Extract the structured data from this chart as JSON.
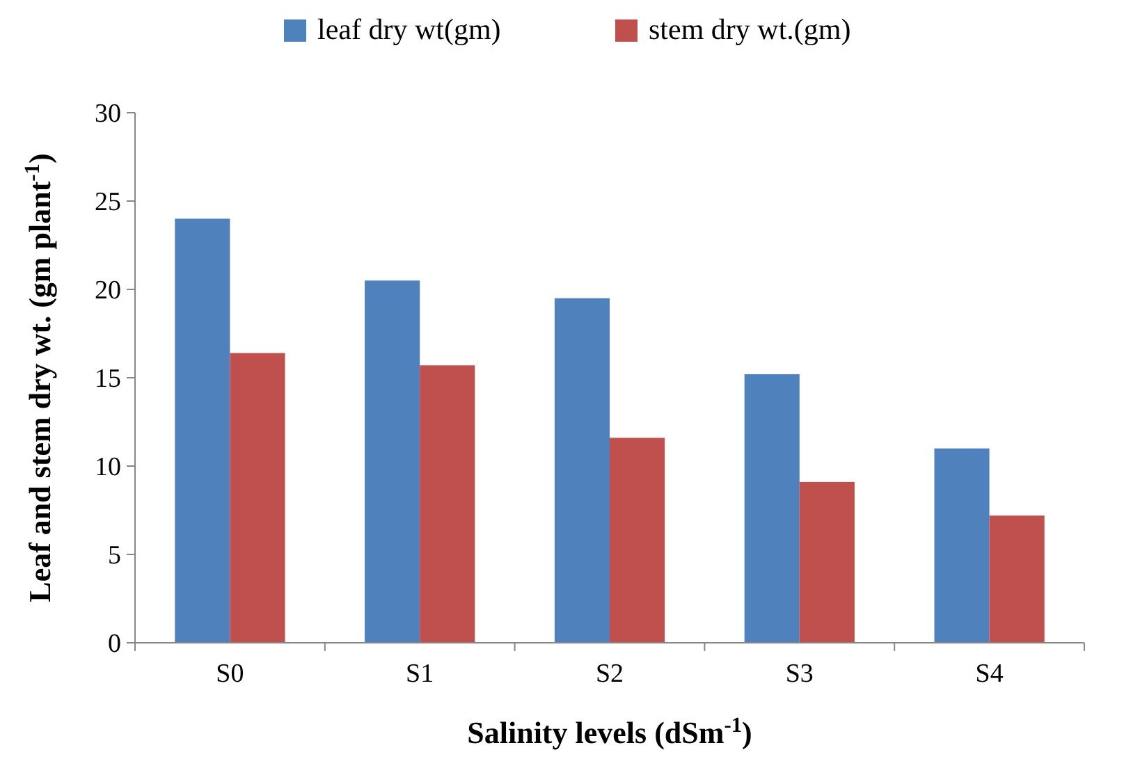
{
  "chart_data": {
    "type": "bar",
    "xlabel": "Salinity levels (dSm$^{-1}$)",
    "ylabel": "Leaf and stem dry  wt.  (gm plant$^{-1}$)",
    "categories": [
      "S0",
      "S1",
      "S2",
      "S3",
      "S4"
    ],
    "series": [
      {
        "name": "leaf dry wt(gm)",
        "color": "#4f81bd",
        "values": [
          24,
          20.5,
          19.5,
          15.2,
          11
        ]
      },
      {
        "name": "stem dry wt.(gm)",
        "color": "#c0504d",
        "values": [
          16.4,
          15.7,
          11.6,
          9.1,
          7.2
        ]
      }
    ],
    "ylim": [
      0,
      30
    ],
    "yticks": [
      0,
      5,
      10,
      15,
      20,
      25,
      30
    ],
    "grid": false,
    "legend": "top"
  }
}
